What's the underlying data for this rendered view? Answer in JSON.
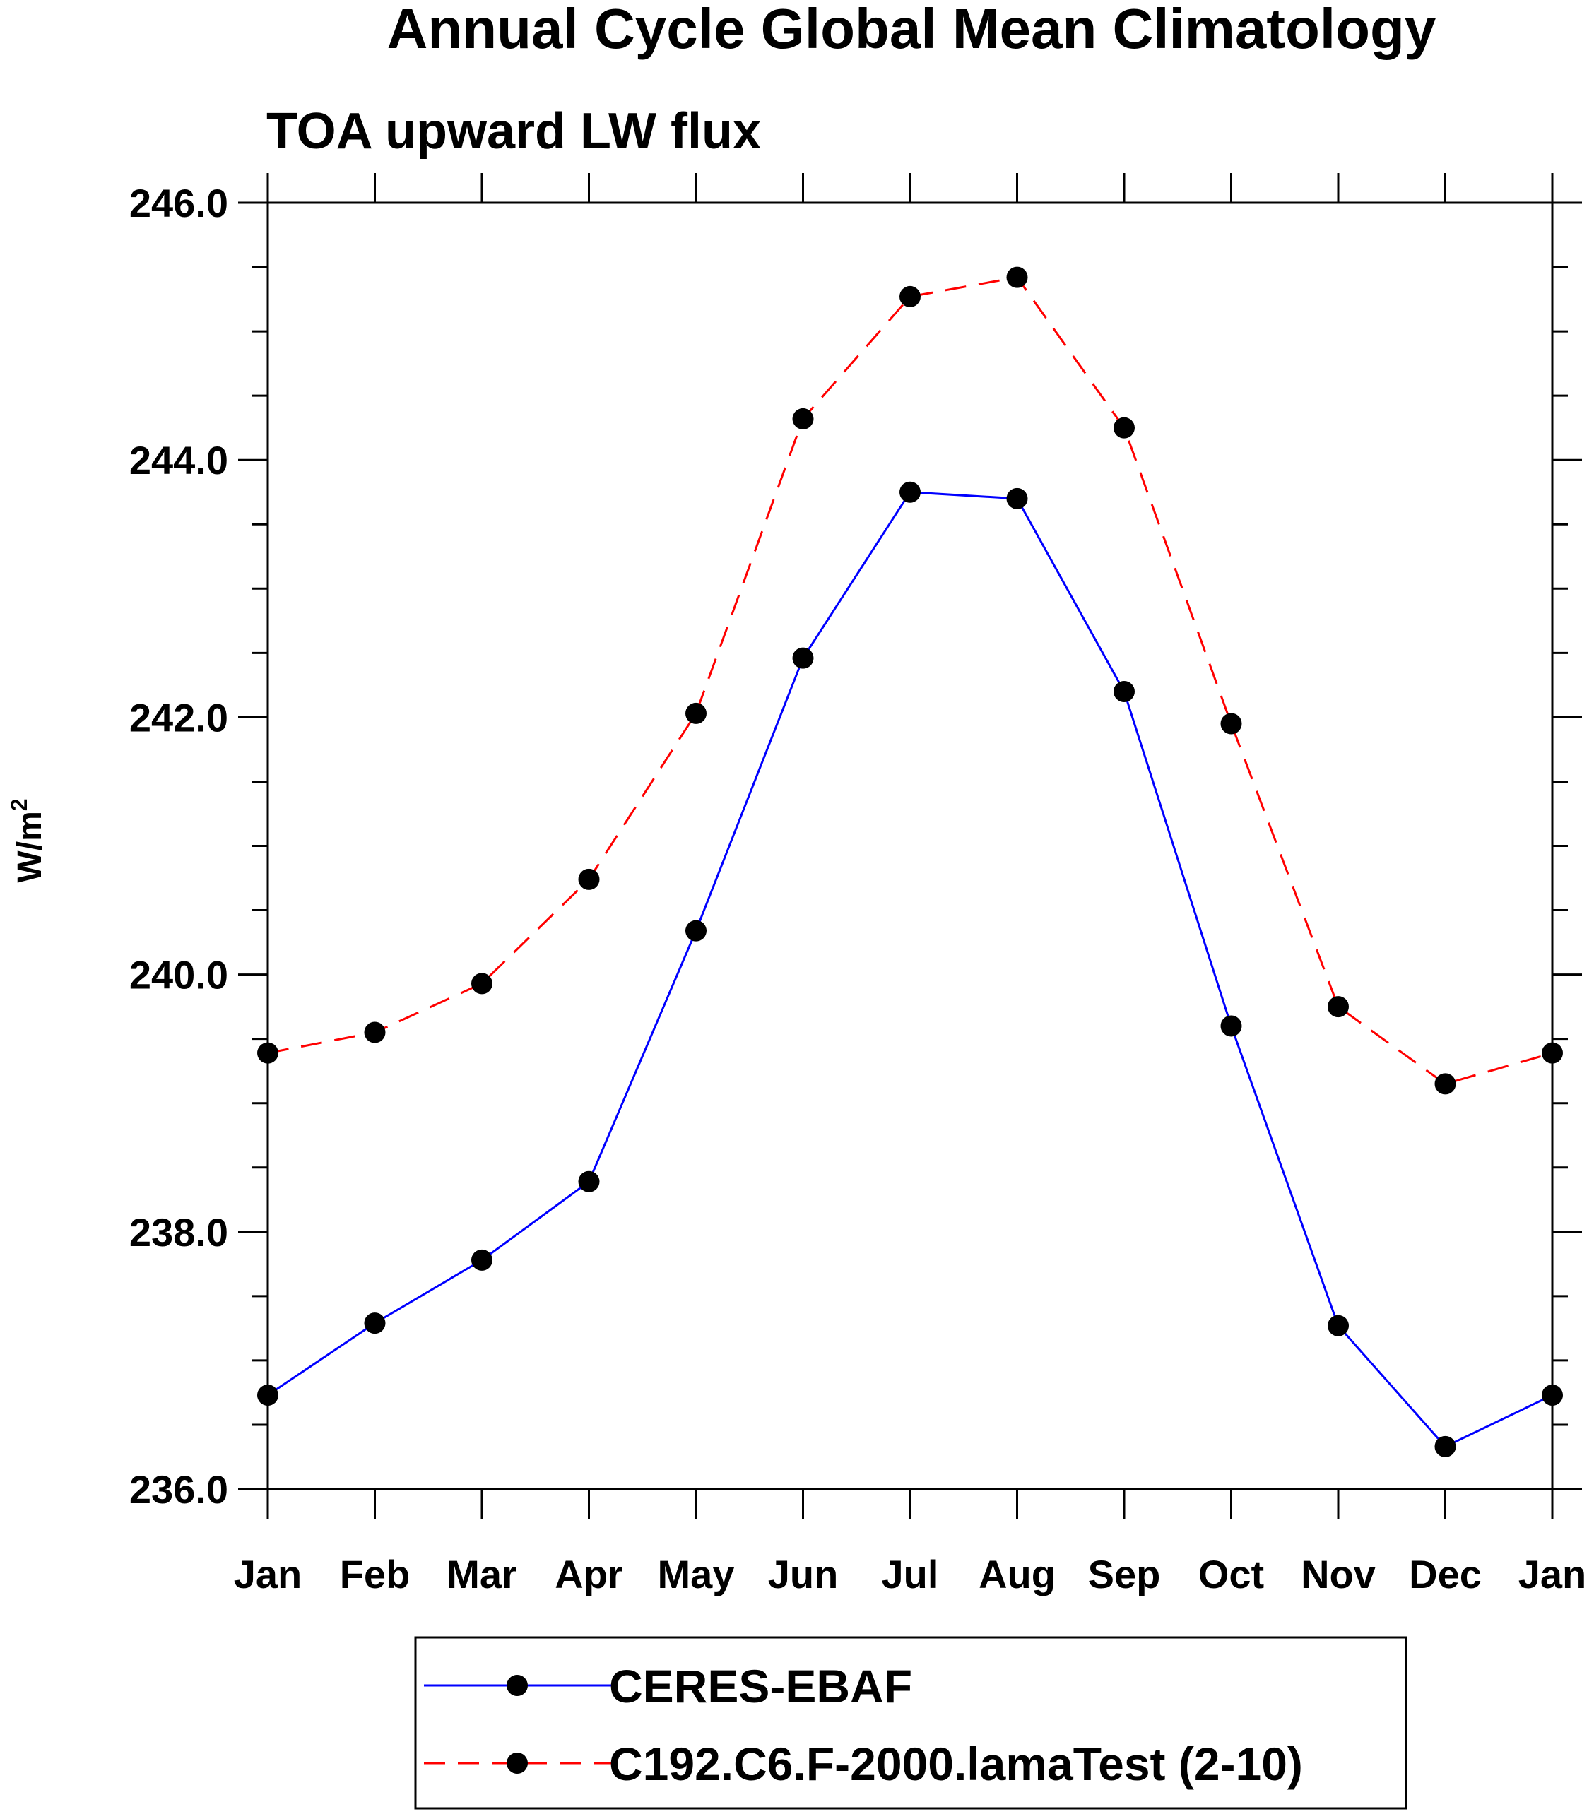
{
  "chart_data": {
    "type": "line",
    "title": "Annual Cycle Global Mean Climatology",
    "subtitle": "TOA upward LW flux",
    "ylabel": "W/m",
    "ylabel_superscript": "2",
    "xlabel": "",
    "categories": [
      "Jan",
      "Feb",
      "Mar",
      "Apr",
      "May",
      "Jun",
      "Jul",
      "Aug",
      "Sep",
      "Oct",
      "Nov",
      "Dec",
      "Jan"
    ],
    "ylim": [
      236.0,
      246.0
    ],
    "yticks": [
      "236.0",
      "238.0",
      "240.0",
      "242.0",
      "244.0",
      "246.0"
    ],
    "grid": false,
    "legend_position": "bottom",
    "series": [
      {
        "name": "CERES-EBAF",
        "color": "#0000ff",
        "line_style": "solid",
        "marker": "filled-circle",
        "values": [
          236.73,
          237.29,
          237.78,
          238.39,
          240.34,
          242.46,
          243.75,
          243.7,
          242.2,
          239.6,
          237.27,
          236.33,
          236.73
        ]
      },
      {
        "name": "C192.C6.F-2000.lamaTest (2-10)",
        "color": "#ff0000",
        "line_style": "dashed",
        "marker": "filled-circle",
        "values": [
          239.39,
          239.55,
          239.93,
          240.74,
          242.03,
          244.32,
          245.27,
          245.42,
          244.25,
          241.95,
          239.75,
          239.15,
          239.39
        ]
      }
    ]
  }
}
